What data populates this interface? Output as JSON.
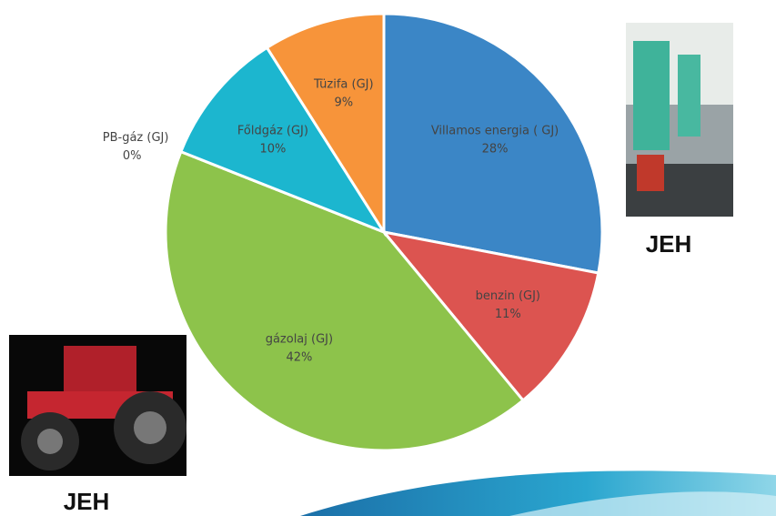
{
  "chart_data": {
    "type": "pie",
    "categories": [
      "Villamos energia ( GJ)",
      "benzin  (GJ)",
      "gázolaj (GJ)",
      "PB-gáz (GJ)",
      "Főldgáz  (GJ)",
      "Tüzifa (GJ)"
    ],
    "values": [
      28,
      11,
      42,
      0,
      10,
      9
    ],
    "value_labels": [
      "28%",
      "11%",
      "42%",
      "0%",
      "10%",
      "9%"
    ],
    "colors": [
      "#3b86c6",
      "#dc5450",
      "#8dc34b",
      "#2f9ab8",
      "#1cb6cf",
      "#f7943a"
    ]
  },
  "annotations": [
    "JEH",
    "JEH"
  ]
}
